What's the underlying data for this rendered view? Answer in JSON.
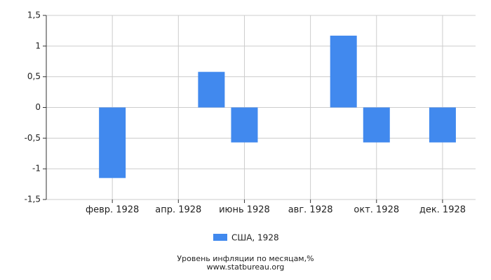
{
  "chart_data": {
    "type": "bar",
    "title": "Уровень инфляции по месяцам,%",
    "subtitle": "www.statbureau.org",
    "categories": [
      null,
      "февр. 1928",
      null,
      "апр. 1928",
      null,
      "июнь 1928",
      null,
      "авг. 1928",
      null,
      "окт. 1928",
      null,
      "дек. 1928"
    ],
    "series": [
      {
        "name": "США, 1928",
        "color": "#4189ee",
        "values": [
          0,
          -1.15,
          0,
          0,
          0.58,
          -0.57,
          0,
          0,
          1.17,
          -0.57,
          0,
          -0.57
        ]
      }
    ],
    "ylim": [
      -1.5,
      1.5
    ],
    "yticks": [
      {
        "value": -1.5,
        "label": "-1,5"
      },
      -1,
      {
        "value": -0.5,
        "label": "-0,5"
      },
      0,
      {
        "value": 0.5,
        "label": "0,5"
      },
      1,
      {
        "value": 1.5,
        "label": "1,5"
      }
    ],
    "grid": true
  }
}
